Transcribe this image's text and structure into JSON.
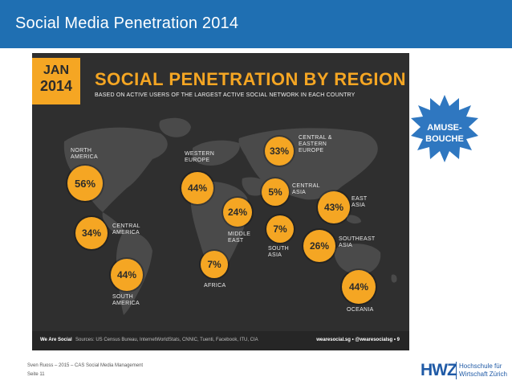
{
  "header": {
    "title": "Social Media Penetration 2014"
  },
  "infographic": {
    "badge_month": "JAN",
    "badge_year": "2014",
    "title": "SOCIAL PENETRATION BY REGION",
    "subtitle": "BASED ON ACTIVE USERS OF THE LARGEST ACTIVE SOCIAL NETWORK IN EACH COUNTRY",
    "regions": [
      {
        "name": "NORTH AMERICA",
        "value": "56%"
      },
      {
        "name": "CENTRAL AMERICA",
        "value": "34%"
      },
      {
        "name": "SOUTH AMERICA",
        "value": "44%"
      },
      {
        "name": "WESTERN EUROPE",
        "value": "44%"
      },
      {
        "name": "AFRICA",
        "value": "7%"
      },
      {
        "name": "MIDDLE EAST",
        "value": "24%"
      },
      {
        "name": "CENTRAL & EASTERN EUROPE",
        "value": "33%"
      },
      {
        "name": "CENTRAL ASIA",
        "value": "5%"
      },
      {
        "name": "SOUTH ASIA",
        "value": "7%"
      },
      {
        "name": "EAST ASIA",
        "value": "43%"
      },
      {
        "name": "SOUTHEAST ASIA",
        "value": "26%"
      },
      {
        "name": "OCEANIA",
        "value": "44%"
      }
    ],
    "footer_brand": "We Are Social",
    "footer_sources": "Sources: US Census Bureau, InternetWorldStats, CNNIC, Tuenti, Facebook, ITU, CIA",
    "footer_right": "wearesocial.sg • @wearesocialsg • 9"
  },
  "badge": {
    "label": "AMUSE- BOUCHE"
  },
  "meta": {
    "author": "Sven Ruoss – 2015 – CAS Social Media Management",
    "page": "Seite 11"
  },
  "logo": {
    "mark": "HWZ",
    "line1": "Hochschule für",
    "line2": "Wirtschaft Zürich"
  },
  "colors": {
    "header_bg": "#1f6fb2",
    "accent": "#f5a623",
    "dark": "#2f2f2f",
    "brand_blue": "#1f5aa6"
  }
}
